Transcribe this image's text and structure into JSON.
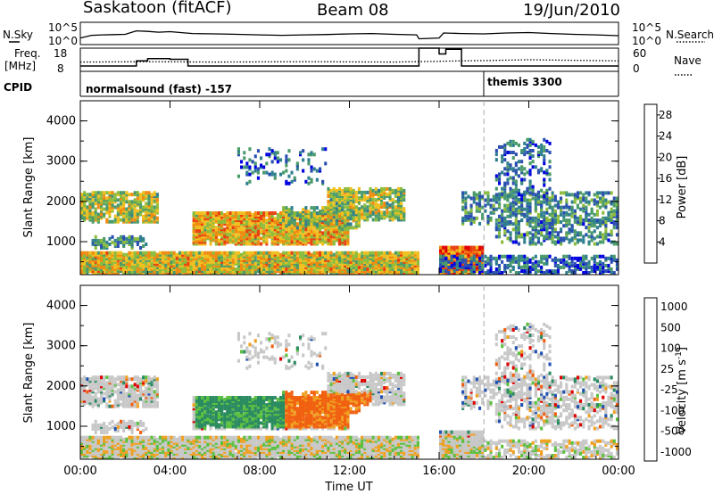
{
  "header": {
    "station": "Saskatoon (fitACF)",
    "beam": "Beam 08",
    "date": "19/Jun/2010"
  },
  "top_labels": {
    "nsky": "N.Sky",
    "nsky_hi": "10^5",
    "nsky_lo": "10^0",
    "nsearch": "N.Search",
    "nsearch_hi": "10^5",
    "nsearch_lo": "10^0",
    "freq": "Freq.",
    "freq_unit": "[MHz]",
    "freq_hi": "18",
    "freq_lo": "8",
    "nave": "Nave",
    "nave_hi": "60",
    "nave_lo": "0",
    "cpid": "CPID",
    "cpid_1": "normalsound (fast) -157",
    "cpid_2": "themis 3300"
  },
  "chart_data": [
    {
      "type": "line",
      "panel": "noise",
      "x_unit": "hours UT",
      "series": [
        {
          "name": "N.Sky",
          "style": "solid",
          "x": [
            0,
            0.5,
            1,
            2,
            2.5,
            3,
            3.5,
            4,
            5,
            6,
            7,
            8,
            9,
            10,
            11,
            12,
            13,
            14,
            15,
            15.1,
            16,
            16.2,
            17,
            18,
            19,
            20,
            21,
            22,
            23,
            24
          ],
          "y": [
            30,
            120,
            150,
            200,
            1200,
            900,
            600,
            800,
            300,
            250,
            200,
            150,
            120,
            150,
            180,
            250,
            300,
            200,
            150,
            20,
            30,
            400,
            300,
            250,
            400,
            500,
            300,
            200,
            150,
            100
          ]
        }
      ]
    },
    {
      "type": "line",
      "panel": "freq_nave",
      "x_unit": "hours UT",
      "series": [
        {
          "name": "Freq.",
          "style": "solid",
          "x": [
            0,
            2.5,
            2.5,
            3,
            3,
            4,
            4,
            4.8,
            4.8,
            15.1,
            15.1,
            16,
            16,
            16.3,
            16.3,
            17,
            17,
            24
          ],
          "y": [
            10.3,
            10.3,
            12.5,
            12.5,
            13.5,
            13.5,
            13.2,
            13.2,
            10.3,
            10.3,
            19,
            19,
            15.5,
            15.5,
            17.5,
            17.5,
            10.3,
            10.3
          ]
        },
        {
          "name": "Nave",
          "style": "dotted",
          "x": [
            0,
            3,
            6,
            10,
            14,
            16,
            18,
            20,
            24
          ],
          "y": [
            24,
            25,
            24,
            25,
            24,
            26,
            28,
            30,
            27
          ]
        }
      ]
    },
    {
      "type": "heatmap",
      "title": "Power",
      "xlabel": "Time UT",
      "ylabel": "Slant Range [km]",
      "xlim": [
        0,
        24
      ],
      "ylim": [
        180,
        4500
      ],
      "xticks": [
        "00:00",
        "04:00",
        "08:00",
        "12:00",
        "16:00",
        "20:00",
        "00:00"
      ],
      "yticks": [
        1000,
        2000,
        3000,
        4000
      ],
      "colorbar_label": "Power [dB]",
      "colorbar_ticks": [
        4,
        8,
        12,
        16,
        20,
        24,
        28
      ],
      "colorbar_range": [
        0,
        30
      ],
      "dashed_line_x": 18,
      "data_gap": [
        15.1,
        16
      ]
    },
    {
      "type": "heatmap",
      "title": "Velocity",
      "xlabel": "Time UT",
      "ylabel": "Slant Range [km]",
      "xlim": [
        0,
        24
      ],
      "ylim": [
        180,
        4500
      ],
      "xticks": [
        "00:00",
        "04:00",
        "08:00",
        "12:00",
        "16:00",
        "20:00",
        "00:00"
      ],
      "yticks": [
        1000,
        2000,
        3000,
        4000
      ],
      "colorbar_label": "Velocity [m s-1]",
      "colorbar_ticks": [
        "1000",
        "500",
        "100",
        "25",
        "-25",
        "-100",
        "-500",
        "-1000"
      ],
      "dashed_line_x": 18,
      "data_gap": [
        15.1,
        16
      ]
    }
  ],
  "colors": {
    "power_scale": [
      "#0000e0",
      "#2a4fb0",
      "#2f7f8f",
      "#4a9a6a",
      "#8cbc3c",
      "#f0c020",
      "#f08a10",
      "#e84010",
      "#e00000"
    ],
    "velocity_scale": [
      "#e00000",
      "#f06010",
      "#f0a020",
      "#c8c8c8",
      "#c8c8c8",
      "#5cc040",
      "#2a8a60",
      "#2050b0"
    ]
  },
  "axes": {
    "power_colorbar_title": "Power [dB]",
    "velocity_colorbar_title": "Velocity [m s",
    "velocity_colorbar_sup": "-1",
    "velocity_colorbar_end": "]"
  }
}
